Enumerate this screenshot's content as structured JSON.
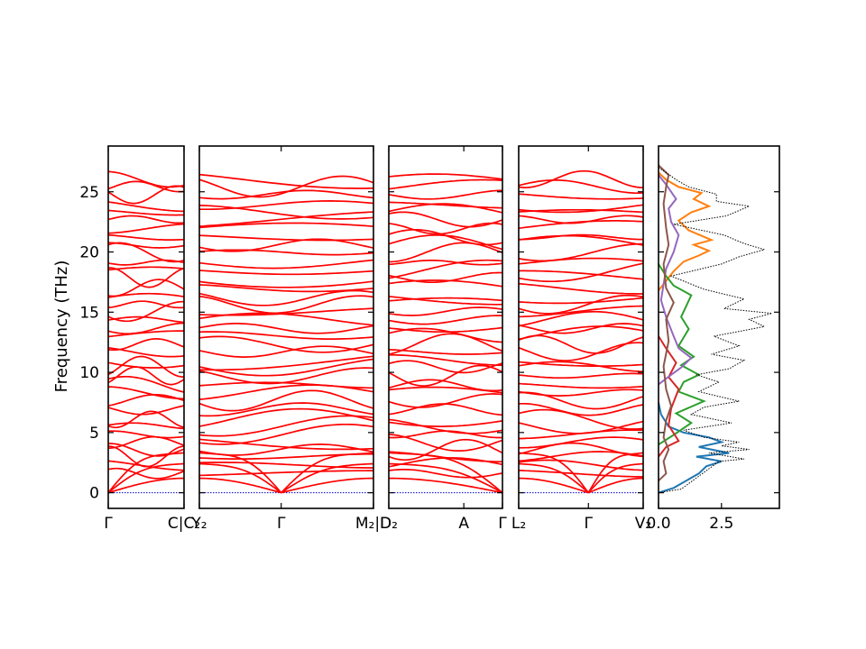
{
  "chart_data": {
    "type": "line",
    "ylabel": "Frequency (THz)",
    "ylim": [
      -1.3,
      28.8
    ],
    "yticks": [
      0,
      5,
      10,
      15,
      20,
      25
    ],
    "colors": {
      "bands": "#ff0000",
      "zero_line": "#0000cc",
      "dos_total": "#000000",
      "dos_series": [
        "#1f77b4",
        "#ff7f0e",
        "#2ca02c",
        "#d62728",
        "#9467bd",
        "#8c564b"
      ]
    },
    "band_panels": [
      {
        "ticks": [
          "Γ",
          "C|C₂"
        ]
      },
      {
        "ticks": [
          "Y₂",
          "Γ",
          "M₂|D"
        ]
      },
      {
        "ticks": [
          "D₂",
          "A",
          "Γ"
        ]
      },
      {
        "ticks": [
          "L₂",
          "Γ",
          "V₂"
        ]
      }
    ],
    "dos_panel": {
      "xlim": [
        0,
        4.8
      ],
      "xticks": [
        "0.0",
        "2.5"
      ],
      "total": [
        [
          0.0,
          0.0
        ],
        [
          0.9,
          0.3
        ],
        [
          2.4,
          2.6
        ],
        [
          3.4,
          2.8
        ],
        [
          2.0,
          3.3
        ],
        [
          3.6,
          3.6
        ],
        [
          2.5,
          3.9
        ],
        [
          3.2,
          4.2
        ],
        [
          1.8,
          4.6
        ],
        [
          1.0,
          5.2
        ],
        [
          2.9,
          5.8
        ],
        [
          1.3,
          6.5
        ],
        [
          1.8,
          7.1
        ],
        [
          3.2,
          7.6
        ],
        [
          1.6,
          8.4
        ],
        [
          2.4,
          9.2
        ],
        [
          1.5,
          9.8
        ],
        [
          2.8,
          10.3
        ],
        [
          3.4,
          11.0
        ],
        [
          2.1,
          11.5
        ],
        [
          3.2,
          12.2
        ],
        [
          2.2,
          13.0
        ],
        [
          4.2,
          13.8
        ],
        [
          3.6,
          14.4
        ],
        [
          4.5,
          14.9
        ],
        [
          2.6,
          15.3
        ],
        [
          3.4,
          16.1
        ],
        [
          1.8,
          16.9
        ],
        [
          0.5,
          18.0
        ],
        [
          2.5,
          19.0
        ],
        [
          3.2,
          19.6
        ],
        [
          4.2,
          20.2
        ],
        [
          3.4,
          20.7
        ],
        [
          2.6,
          21.4
        ],
        [
          0.6,
          22.3
        ],
        [
          2.7,
          23.0
        ],
        [
          3.6,
          23.8
        ],
        [
          2.3,
          24.2
        ],
        [
          2.3,
          24.8
        ],
        [
          1.2,
          25.4
        ],
        [
          0.7,
          26.0
        ],
        [
          0.3,
          26.6
        ],
        [
          0.0,
          27.0
        ]
      ],
      "series": [
        {
          "points": [
            [
              0.0,
              0.0
            ],
            [
              0.6,
              0.4
            ],
            [
              1.6,
              1.6
            ],
            [
              1.9,
              2.2
            ],
            [
              2.5,
              2.6
            ],
            [
              1.5,
              3.0
            ],
            [
              2.8,
              3.3
            ],
            [
              1.6,
              3.8
            ],
            [
              2.5,
              4.2
            ],
            [
              2.0,
              4.6
            ],
            [
              1.0,
              5.0
            ],
            [
              0.4,
              5.5
            ],
            [
              0.1,
              6.5
            ],
            [
              0.0,
              7.5
            ]
          ]
        },
        {
          "points": [
            [
              0.0,
              16.8
            ],
            [
              0.3,
              17.6
            ],
            [
              0.6,
              18.4
            ],
            [
              1.0,
              19.2
            ],
            [
              1.6,
              19.7
            ],
            [
              2.0,
              20.1
            ],
            [
              1.4,
              20.6
            ],
            [
              2.1,
              21.0
            ],
            [
              1.2,
              21.8
            ],
            [
              0.8,
              22.6
            ],
            [
              1.3,
              23.3
            ],
            [
              2.0,
              23.8
            ],
            [
              1.4,
              24.4
            ],
            [
              1.7,
              24.9
            ],
            [
              0.8,
              25.4
            ],
            [
              0.3,
              26.0
            ],
            [
              0.0,
              26.6
            ]
          ]
        },
        {
          "points": [
            [
              0.0,
              4.0
            ],
            [
              0.6,
              4.8
            ],
            [
              1.3,
              5.8
            ],
            [
              0.7,
              6.6
            ],
            [
              1.8,
              7.6
            ],
            [
              0.8,
              8.4
            ],
            [
              1.0,
              9.2
            ],
            [
              1.6,
              9.8
            ],
            [
              0.9,
              10.6
            ],
            [
              1.4,
              11.3
            ],
            [
              0.8,
              12.2
            ],
            [
              1.2,
              13.6
            ],
            [
              0.9,
              14.6
            ],
            [
              1.3,
              16.4
            ],
            [
              0.6,
              17.2
            ],
            [
              0.3,
              18.0
            ],
            [
              0.0,
              19.0
            ]
          ]
        },
        {
          "points": [
            [
              0.0,
              3.0
            ],
            [
              0.3,
              3.8
            ],
            [
              0.8,
              4.3
            ],
            [
              0.4,
              5.6
            ],
            [
              0.5,
              7.0
            ],
            [
              0.8,
              8.6
            ],
            [
              0.4,
              9.6
            ],
            [
              0.7,
              10.8
            ],
            [
              0.3,
              12.0
            ],
            [
              0.0,
              13.0
            ]
          ]
        },
        {
          "points": [
            [
              0.0,
              9.0
            ],
            [
              0.5,
              9.8
            ],
            [
              0.9,
              10.4
            ],
            [
              1.3,
              11.2
            ],
            [
              0.8,
              12.0
            ],
            [
              0.6,
              13.0
            ],
            [
              0.3,
              14.6
            ],
            [
              0.1,
              16.0
            ],
            [
              0.3,
              18.6
            ],
            [
              0.6,
              20.0
            ],
            [
              0.8,
              21.4
            ],
            [
              0.5,
              22.5
            ],
            [
              0.4,
              23.6
            ],
            [
              0.7,
              24.4
            ],
            [
              0.3,
              25.6
            ],
            [
              0.0,
              26.4
            ]
          ]
        },
        {
          "points": [
            [
              0.0,
              1.0
            ],
            [
              0.3,
              1.6
            ],
            [
              0.2,
              2.6
            ],
            [
              0.4,
              3.6
            ],
            [
              0.2,
              4.6
            ],
            [
              0.3,
              6.0
            ],
            [
              0.5,
              7.2
            ],
            [
              0.3,
              8.6
            ],
            [
              0.2,
              10.5
            ],
            [
              0.4,
              12.6
            ],
            [
              0.3,
              14.4
            ],
            [
              0.6,
              15.8
            ],
            [
              0.3,
              17.0
            ],
            [
              0.2,
              19.0
            ],
            [
              0.4,
              20.6
            ],
            [
              0.3,
              22.0
            ],
            [
              0.2,
              24.0
            ],
            [
              0.3,
              25.4
            ],
            [
              0.4,
              26.4
            ],
            [
              0.0,
              27.2
            ]
          ]
        }
      ]
    }
  }
}
